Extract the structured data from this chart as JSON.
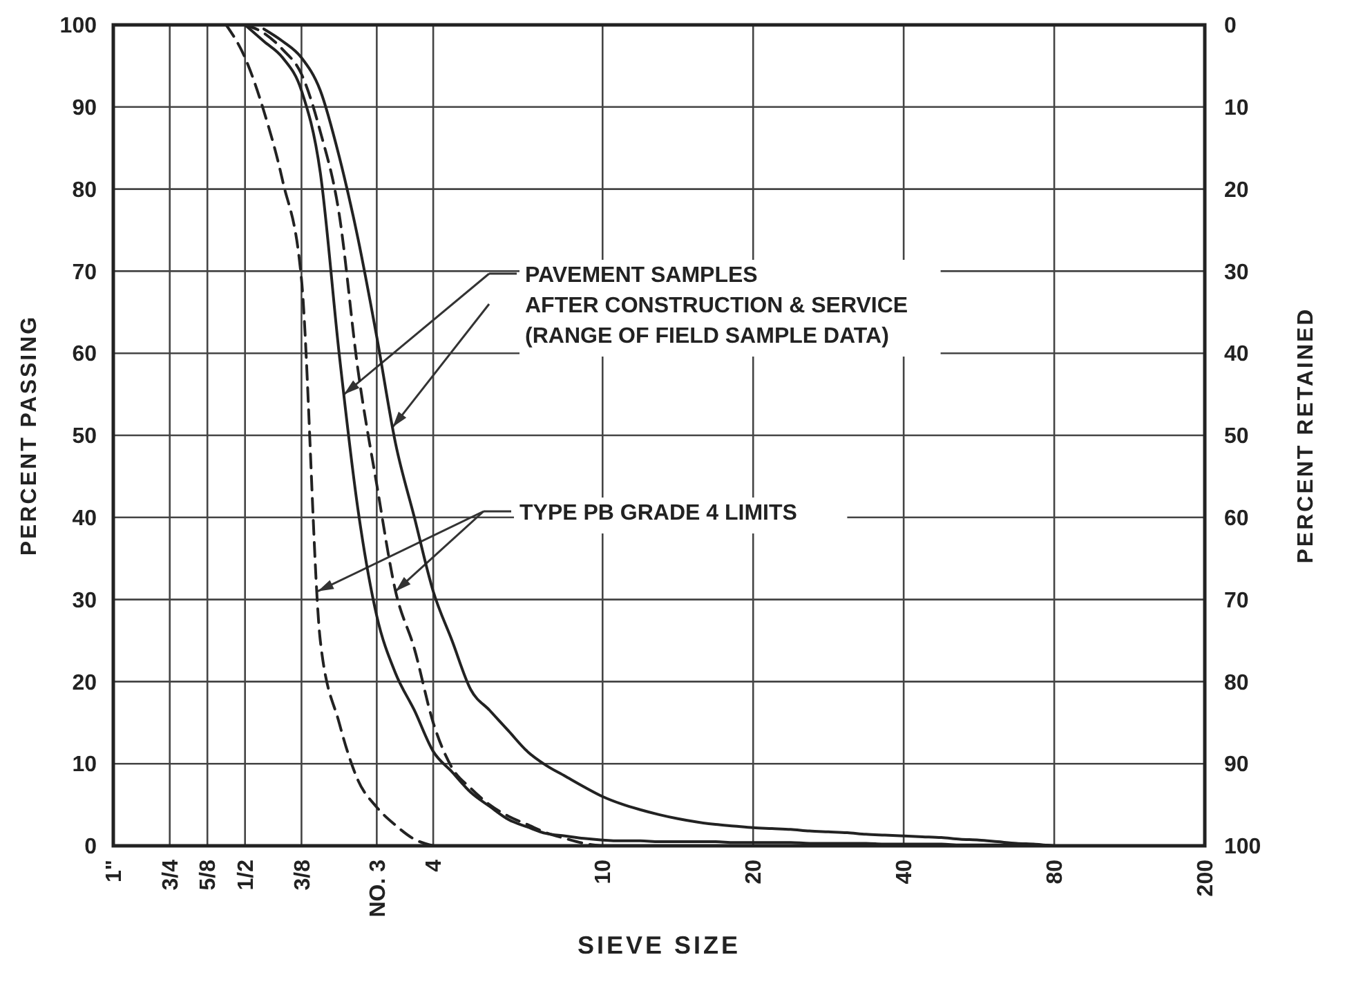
{
  "chart_data": {
    "type": "line",
    "xlabel": "SIEVE SIZE",
    "ylabel": "PERCENT PASSING",
    "y2label": "PERCENT RETAINED",
    "grid": true,
    "categories": [
      "1\"",
      null,
      null,
      "3/4",
      null,
      "5/8",
      null,
      "1/2",
      null,
      null,
      "3/8",
      null,
      null,
      null,
      "NO. 3",
      null,
      null,
      "4",
      null,
      null,
      null,
      null,
      null,
      null,
      null,
      null,
      "10",
      null,
      null,
      null,
      null,
      null,
      null,
      null,
      "20",
      null,
      null,
      null,
      null,
      null,
      null,
      null,
      "40",
      null,
      null,
      null,
      null,
      null,
      null,
      null,
      "80",
      null,
      null,
      null,
      null,
      null,
      null,
      null,
      "200"
    ],
    "ylim": [
      0,
      100
    ],
    "yticks": [
      0,
      10,
      20,
      30,
      40,
      50,
      60,
      70,
      80,
      90,
      100
    ],
    "y2lim": [
      100,
      0
    ],
    "y2ticks": [
      0,
      10,
      20,
      30,
      40,
      50,
      60,
      70,
      80,
      90,
      100
    ],
    "series": [
      {
        "color": "#222222",
        "line_style": "dashed",
        "values": [
          null,
          null,
          null,
          null,
          null,
          null,
          100,
          96,
          89.5,
          81,
          69,
          25,
          15,
          8,
          4.7,
          2.5,
          0.8,
          0,
          null,
          null,
          null,
          null,
          null,
          null,
          null,
          null,
          null,
          null,
          null,
          null,
          null,
          null,
          null,
          null,
          null,
          null,
          null,
          null,
          null,
          null,
          null,
          null,
          null,
          null,
          null,
          null,
          null,
          null,
          null,
          null,
          null,
          null,
          null,
          null,
          null,
          null,
          null,
          null,
          null
        ]
      },
      {
        "color": "#222222",
        "line_style": "solid",
        "values": [
          null,
          null,
          null,
          null,
          null,
          null,
          null,
          100,
          98,
          96,
          92,
          82,
          60,
          41,
          28,
          21,
          16.5,
          11.5,
          9,
          6.5,
          4.8,
          3.2,
          2.3,
          1.5,
          1.2,
          0.9,
          0.7,
          0.6,
          0.6,
          0.5,
          0.5,
          0.5,
          0.5,
          0.4,
          0.4,
          0.4,
          0.4,
          0.3,
          0.3,
          0.3,
          0.3,
          0.2,
          0.2,
          0.2,
          0.2,
          0.1,
          0.1,
          0.1,
          0.1,
          0.1,
          0,
          null,
          null,
          null,
          null,
          null,
          null,
          null,
          null
        ]
      },
      {
        "color": "#222222",
        "line_style": "dashed",
        "values": [
          null,
          null,
          null,
          null,
          null,
          null,
          null,
          100,
          99,
          97,
          94,
          87,
          77,
          58,
          44,
          31,
          24,
          15,
          9.5,
          7,
          5,
          3.6,
          2.6,
          1.6,
          0.9,
          0.3,
          0,
          null,
          null,
          null,
          null,
          null,
          null,
          null,
          null,
          null,
          null,
          null,
          null,
          null,
          null,
          null,
          null,
          null,
          null,
          null,
          null,
          null,
          null,
          null,
          null,
          null,
          null,
          null,
          null,
          null,
          null,
          null,
          null
        ]
      },
      {
        "color": "#222222",
        "line_style": "solid",
        "values": [
          null,
          null,
          null,
          null,
          null,
          null,
          null,
          null,
          99.5,
          98,
          96,
          92,
          84,
          74,
          62,
          49,
          40,
          31,
          25,
          19,
          16.5,
          14,
          11.5,
          9.8,
          8.5,
          7.2,
          6,
          5.1,
          4.4,
          3.8,
          3.3,
          2.9,
          2.6,
          2.4,
          2.2,
          2.1,
          2,
          1.8,
          1.7,
          1.6,
          1.4,
          1.3,
          1.2,
          1.1,
          1,
          0.8,
          0.7,
          0.5,
          0.3,
          0.2,
          0,
          null,
          null,
          null,
          null,
          null,
          null,
          null,
          null
        ]
      }
    ],
    "annotations": [
      "PAVEMENT SAMPLES\nAFTER CONSTRUCTION & SERVICE\n(RANGE OF FIELD SAMPLE DATA)",
      "TYPE PB GRADE 4 LIMITS"
    ]
  }
}
